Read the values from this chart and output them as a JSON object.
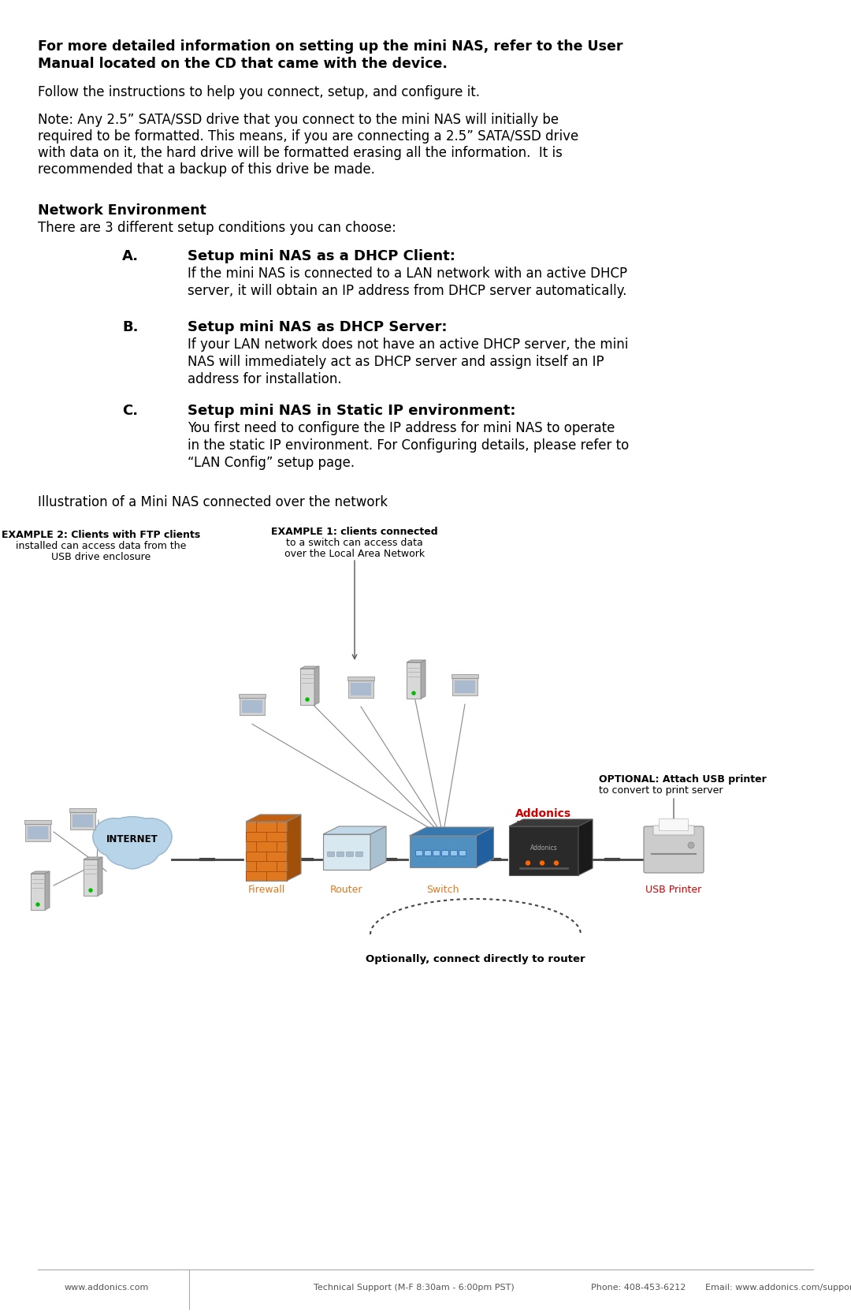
{
  "bg_color": "#ffffff",
  "text_color": "#000000",
  "bold_intro_line1": "For more detailed information on setting up the mini NAS, refer to the User",
  "bold_intro_line2": "Manual located on the CD that came with the device.",
  "para1": "Follow the instructions to help you connect, setup, and configure it.",
  "note_line1": "Note: Any 2.5” SATA/SSD drive that you connect to the mini NAS will initially be",
  "note_line2": "required to be formatted. This means, if you are connecting a 2.5” SATA/SSD drive",
  "note_line3": "with data on it, the hard drive will be formatted erasing all the information.  It is",
  "note_line4": "recommended that a backup of this drive be made.",
  "section_header": "Network Environment",
  "section_sub": "There are 3 different setup conditions you can choose:",
  "item_A_label": "A.",
  "item_A_title": "Setup mini NAS as a DHCP Client:",
  "item_A_text1": "If the mini NAS is connected to a LAN network with an active DHCP",
  "item_A_text2": "server, it will obtain an IP address from DHCP server automatically.",
  "item_B_label": "B.",
  "item_B_title": "Setup mini NAS as DHCP Server:",
  "item_B_text1": "If your LAN network does not have an active DHCP server, the mini",
  "item_B_text2": "NAS will immediately act as DHCP server and assign itself an IP",
  "item_B_text3": "address for installation.",
  "item_C_label": "C.",
  "item_C_title": "Setup mini NAS in Static IP environment:",
  "item_C_text1": "You first need to configure the IP address for mini NAS to operate",
  "item_C_text2": "in the static IP environment. For Configuring details, please refer to",
  "item_C_text3": "“LAN Config” setup page.",
  "illus_caption": "Illustration of a Mini NAS connected over the network",
  "addonics_color": "#cc0000",
  "printer_color": "#cc0000",
  "firewall_color": "#e07020",
  "footer_line1": "www.addonics.com",
  "footer_line2": "Technical Support (M-F 8:30am - 6:00pm PST)",
  "footer_line3": "Phone: 408-453-6212",
  "footer_line4": "Email: www.addonics.com/support/query/"
}
